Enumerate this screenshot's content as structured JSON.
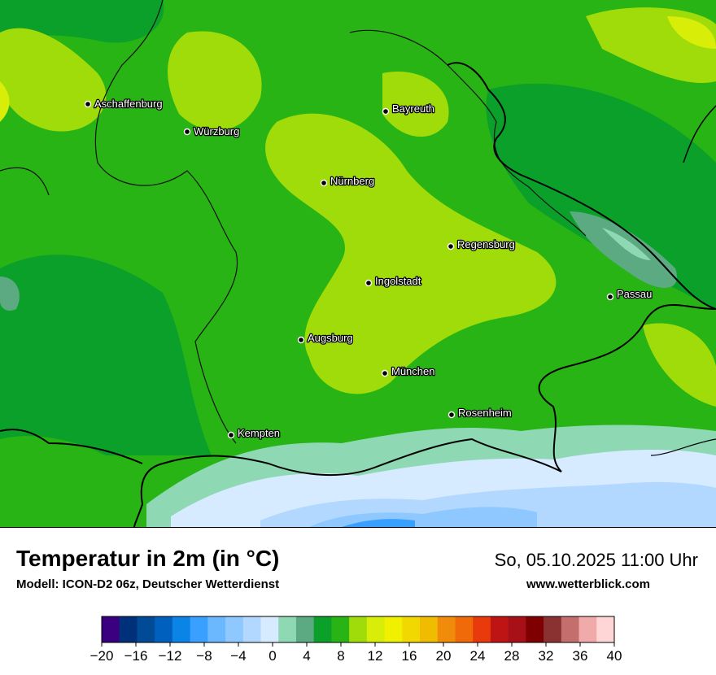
{
  "title": "Temperatur in 2m (in °C)",
  "model": "Modell: ICON-D2 06z, Deutscher Wetterdienst",
  "datetime": "So, 05.10.2025 11:00 Uhr",
  "website": "www.wetterblick.com",
  "cities": [
    {
      "name": "Aschaffenburg"
    },
    {
      "name": "Würzburg"
    },
    {
      "name": "Bayreuth"
    },
    {
      "name": "Nürnberg"
    },
    {
      "name": "Regensburg"
    },
    {
      "name": "Ingolstadt"
    },
    {
      "name": "Passau"
    },
    {
      "name": "Augsburg"
    },
    {
      "name": "München"
    },
    {
      "name": "Rosenheim"
    },
    {
      "name": "Kempten"
    }
  ],
  "legend": {
    "colors": [
      "#3a007f",
      "#00307a",
      "#004a96",
      "#0060be",
      "#0a84e6",
      "#3aa0ff",
      "#6cb8ff",
      "#8ec8ff",
      "#b2d8ff",
      "#d6ebff",
      "#8ed8b4",
      "#5caa82",
      "#0aa02a",
      "#28b414",
      "#a0dc0a",
      "#d8ee08",
      "#f0f000",
      "#f0d800",
      "#f0bc00",
      "#f08c0a",
      "#f06a0a",
      "#e83a0a",
      "#be1414",
      "#a81018",
      "#7e0000",
      "#8a3232",
      "#c46e6e",
      "#f0aaaa",
      "#ffd6d6"
    ],
    "tick_labels": [
      "−20",
      "−16",
      "−12",
      "−8",
      "−4",
      "0",
      "4",
      "8",
      "12",
      "16",
      "20",
      "24",
      "28",
      "32",
      "36",
      "40"
    ]
  }
}
